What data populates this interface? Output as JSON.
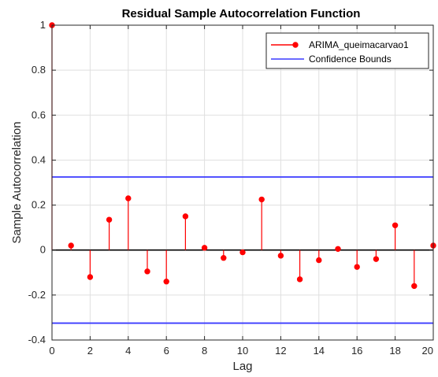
{
  "chart_data": {
    "type": "stem",
    "title": "Residual Sample Autocorrelation Function",
    "xlabel": "Lag",
    "ylabel": "Sample Autocorrelation",
    "xlim": [
      0,
      20
    ],
    "ylim": [
      -0.4,
      1
    ],
    "xticks": [
      0,
      2,
      4,
      6,
      8,
      10,
      12,
      14,
      16,
      18,
      20
    ],
    "yticks": [
      -0.4,
      -0.2,
      0,
      0.2,
      0.4,
      0.6,
      0.8,
      1
    ],
    "grid": true,
    "legend_position": "top-right",
    "series": [
      {
        "name": "ARIMA_queimacarvao1",
        "color": "#ff0000",
        "x": [
          0,
          1,
          2,
          3,
          4,
          5,
          6,
          7,
          8,
          9,
          10,
          11,
          12,
          13,
          14,
          15,
          16,
          17,
          18,
          19,
          20
        ],
        "y": [
          1.0,
          0.02,
          -0.12,
          0.135,
          0.23,
          -0.095,
          -0.14,
          0.15,
          0.01,
          -0.035,
          -0.01,
          0.225,
          -0.025,
          -0.13,
          -0.045,
          0.005,
          -0.075,
          -0.04,
          0.11,
          -0.16,
          0.02
        ]
      }
    ],
    "confidence_bounds": {
      "name": "Confidence Bounds",
      "color": "#3a3aff",
      "upper": 0.325,
      "lower": -0.325
    }
  }
}
